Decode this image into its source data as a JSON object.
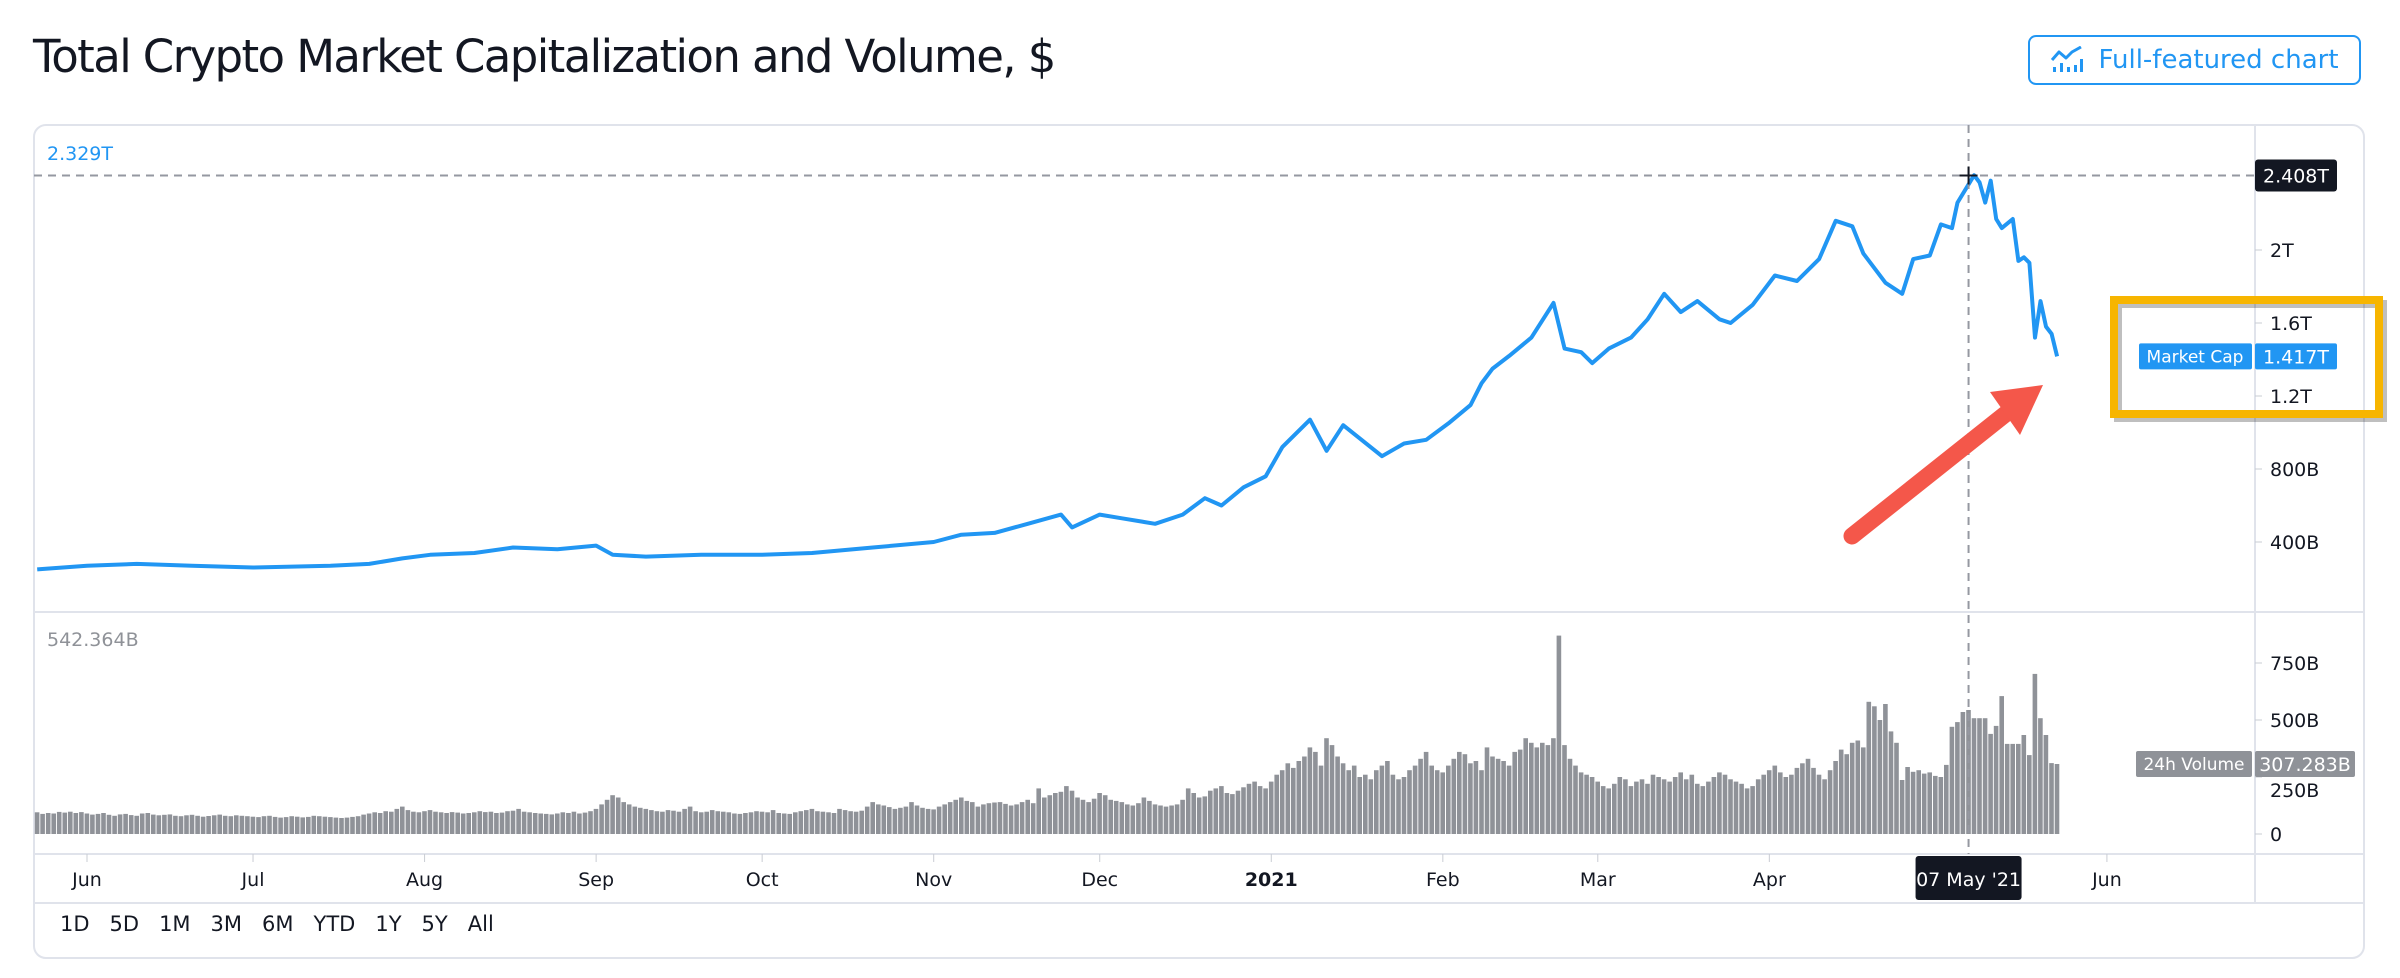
{
  "header": {
    "title": "Total Crypto Market Capitalization and Volume, $",
    "full_chart_button": "Full-featured chart",
    "full_chart_icon": "chart-line-bars-icon"
  },
  "colors": {
    "line": "#2196f3",
    "volume_bar": "#8f9298",
    "crosshair_tag": "#131722",
    "highlight_box": "#f7b500",
    "arrow": "#f4574a"
  },
  "range_buttons": [
    "1D",
    "5D",
    "1M",
    "3M",
    "6M",
    "YTD",
    "1Y",
    "5Y",
    "All"
  ],
  "chart_data": [
    {
      "type": "line",
      "title": "Market Cap",
      "pane_label": "2.329T",
      "current_value_label": "1.417T",
      "series_label": "Market Cap",
      "unit": "T USD",
      "ylim": [
        0,
        2.6
      ],
      "y_ticks": [
        {
          "value": 2.0,
          "label": "2T"
        },
        {
          "value": 1.6,
          "label": "1.6T"
        },
        {
          "value": 1.2,
          "label": "1.2T"
        },
        {
          "value": 0.8,
          "label": "800B"
        },
        {
          "value": 0.4,
          "label": "400B"
        }
      ],
      "crosshair": {
        "date": "2021-05-07",
        "value": 2.408,
        "value_label": "2.408T",
        "date_label": "07 May '21"
      },
      "points": [
        [
          "2020-05-23",
          0.25
        ],
        [
          "2020-06-01",
          0.27
        ],
        [
          "2020-06-10",
          0.28
        ],
        [
          "2020-06-20",
          0.27
        ],
        [
          "2020-07-01",
          0.26
        ],
        [
          "2020-07-15",
          0.27
        ],
        [
          "2020-07-22",
          0.28
        ],
        [
          "2020-07-28",
          0.31
        ],
        [
          "2020-08-02",
          0.33
        ],
        [
          "2020-08-10",
          0.34
        ],
        [
          "2020-08-17",
          0.37
        ],
        [
          "2020-08-25",
          0.36
        ],
        [
          "2020-09-01",
          0.38
        ],
        [
          "2020-09-04",
          0.33
        ],
        [
          "2020-09-10",
          0.32
        ],
        [
          "2020-09-20",
          0.33
        ],
        [
          "2020-10-01",
          0.33
        ],
        [
          "2020-10-10",
          0.34
        ],
        [
          "2020-10-21",
          0.37
        ],
        [
          "2020-11-01",
          0.4
        ],
        [
          "2020-11-06",
          0.44
        ],
        [
          "2020-11-12",
          0.45
        ],
        [
          "2020-11-18",
          0.5
        ],
        [
          "2020-11-24",
          0.55
        ],
        [
          "2020-11-26",
          0.48
        ],
        [
          "2020-12-01",
          0.55
        ],
        [
          "2020-12-05",
          0.53
        ],
        [
          "2020-12-11",
          0.5
        ],
        [
          "2020-12-16",
          0.55
        ],
        [
          "2020-12-20",
          0.64
        ],
        [
          "2020-12-23",
          0.6
        ],
        [
          "2020-12-27",
          0.7
        ],
        [
          "2020-12-31",
          0.76
        ],
        [
          "2021-01-03",
          0.92
        ],
        [
          "2021-01-08",
          1.07
        ],
        [
          "2021-01-11",
          0.9
        ],
        [
          "2021-01-14",
          1.04
        ],
        [
          "2021-01-21",
          0.87
        ],
        [
          "2021-01-25",
          0.94
        ],
        [
          "2021-01-29",
          0.96
        ],
        [
          "2021-02-02",
          1.05
        ],
        [
          "2021-02-06",
          1.15
        ],
        [
          "2021-02-08",
          1.27
        ],
        [
          "2021-02-10",
          1.35
        ],
        [
          "2021-02-13",
          1.42
        ],
        [
          "2021-02-17",
          1.52
        ],
        [
          "2021-02-21",
          1.71
        ],
        [
          "2021-02-23",
          1.46
        ],
        [
          "2021-02-26",
          1.44
        ],
        [
          "2021-02-28",
          1.38
        ],
        [
          "2021-03-03",
          1.46
        ],
        [
          "2021-03-07",
          1.52
        ],
        [
          "2021-03-10",
          1.62
        ],
        [
          "2021-03-13",
          1.76
        ],
        [
          "2021-03-16",
          1.66
        ],
        [
          "2021-03-19",
          1.72
        ],
        [
          "2021-03-23",
          1.62
        ],
        [
          "2021-03-25",
          1.6
        ],
        [
          "2021-03-29",
          1.7
        ],
        [
          "2021-04-02",
          1.86
        ],
        [
          "2021-04-06",
          1.83
        ],
        [
          "2021-04-10",
          1.95
        ],
        [
          "2021-04-13",
          2.16
        ],
        [
          "2021-04-16",
          2.13
        ],
        [
          "2021-04-18",
          1.98
        ],
        [
          "2021-04-22",
          1.82
        ],
        [
          "2021-04-25",
          1.76
        ],
        [
          "2021-04-27",
          1.95
        ],
        [
          "2021-04-30",
          1.97
        ],
        [
          "2021-05-02",
          2.14
        ],
        [
          "2021-05-04",
          2.12
        ],
        [
          "2021-05-05",
          2.26
        ],
        [
          "2021-05-07",
          2.36
        ],
        [
          "2021-05-08",
          2.41
        ],
        [
          "2021-05-09",
          2.37
        ],
        [
          "2021-05-10",
          2.26
        ],
        [
          "2021-05-11",
          2.38
        ],
        [
          "2021-05-12",
          2.17
        ],
        [
          "2021-05-13",
          2.12
        ],
        [
          "2021-05-15",
          2.17
        ],
        [
          "2021-05-16",
          1.94
        ],
        [
          "2021-05-17",
          1.96
        ],
        [
          "2021-05-18",
          1.93
        ],
        [
          "2021-05-19",
          1.52
        ],
        [
          "2021-05-20",
          1.72
        ],
        [
          "2021-05-21",
          1.58
        ],
        [
          "2021-05-22",
          1.54
        ],
        [
          "2021-05-23",
          1.417
        ]
      ]
    },
    {
      "type": "bar",
      "title": "24h Volume",
      "pane_label": "542.364B",
      "current_value_label": "307.283B",
      "series_label": "24h Volume",
      "unit": "B USD",
      "ylim": [
        0,
        900
      ],
      "y_ticks": [
        {
          "value": 750,
          "label": "750B"
        },
        {
          "value": 500,
          "label": "500B"
        },
        {
          "value": 250,
          "label": "250B"
        },
        {
          "value": 0,
          "label": "0"
        }
      ],
      "start_date": "2020-05-23",
      "interval": "1 day",
      "values": [
        95,
        88,
        92,
        90,
        97,
        94,
        98,
        92,
        96,
        90,
        85,
        88,
        92,
        84,
        80,
        86,
        88,
        83,
        80,
        90,
        92,
        85,
        82,
        84,
        86,
        80,
        78,
        82,
        84,
        80,
        76,
        79,
        82,
        85,
        80,
        78,
        82,
        80,
        78,
        76,
        74,
        78,
        80,
        75,
        72,
        74,
        78,
        76,
        73,
        75,
        80,
        78,
        76,
        74,
        72,
        70,
        72,
        75,
        78,
        85,
        90,
        95,
        92,
        100,
        98,
        110,
        120,
        105,
        98,
        95,
        100,
        105,
        98,
        95,
        92,
        96,
        94,
        90,
        92,
        95,
        100,
        96,
        98,
        92,
        94,
        100,
        102,
        110,
        98,
        95,
        92,
        90,
        88,
        86,
        90,
        95,
        92,
        98,
        90,
        94,
        100,
        110,
        130,
        150,
        170,
        160,
        140,
        130,
        120,
        115,
        110,
        105,
        100,
        98,
        105,
        102,
        98,
        110,
        120,
        100,
        95,
        98,
        105,
        100,
        98,
        95,
        90,
        88,
        92,
        95,
        100,
        98,
        95,
        105,
        92,
        90,
        88,
        95,
        100,
        105,
        110,
        100,
        98,
        95,
        92,
        110,
        105,
        100,
        98,
        102,
        120,
        140,
        130,
        125,
        118,
        110,
        115,
        120,
        140,
        125,
        115,
        110,
        108,
        120,
        130,
        140,
        150,
        160,
        145,
        140,
        120,
        130,
        135,
        138,
        140,
        132,
        125,
        130,
        140,
        150,
        135,
        200,
        160,
        170,
        180,
        185,
        210,
        190,
        160,
        150,
        140,
        155,
        180,
        170,
        150,
        145,
        140,
        130,
        125,
        135,
        160,
        145,
        130,
        125,
        120,
        125,
        130,
        150,
        200,
        180,
        160,
        165,
        190,
        200,
        210,
        180,
        175,
        190,
        205,
        220,
        230,
        210,
        200,
        230,
        260,
        280,
        310,
        290,
        320,
        340,
        380,
        360,
        300,
        420,
        390,
        340,
        310,
        280,
        300,
        250,
        260,
        240,
        280,
        300,
        320,
        260,
        240,
        250,
        280,
        300,
        330,
        360,
        300,
        280,
        270,
        300,
        330,
        360,
        350,
        310,
        320,
        280,
        380,
        340,
        330,
        320,
        300,
        360,
        370,
        420,
        400,
        380,
        400,
        390,
        420,
        870,
        390,
        330,
        300,
        270,
        260,
        250,
        230,
        210,
        200,
        220,
        250,
        240,
        210,
        230,
        240,
        220,
        260,
        250,
        240,
        230,
        250,
        270,
        240,
        260,
        220,
        210,
        230,
        250,
        270,
        260,
        240,
        230,
        220,
        200,
        210,
        240,
        260,
        280,
        300,
        270,
        250,
        260,
        290,
        310,
        330,
        290,
        260,
        240,
        280,
        320,
        370,
        350,
        400,
        410,
        380,
        580,
        560,
        500,
        570,
        450,
        400,
        237,
        294,
        273,
        280,
        265,
        270,
        255,
        250,
        303,
        470,
        491,
        535,
        544,
        508,
        508,
        508,
        439,
        474,
        605,
        395,
        395,
        395,
        434,
        346,
        702,
        508,
        434,
        311,
        307
      ]
    }
  ],
  "time_axis": {
    "ticks": [
      {
        "date": "2020-06-01",
        "label": "Jun"
      },
      {
        "date": "2020-07-01",
        "label": "Jul"
      },
      {
        "date": "2020-08-01",
        "label": "Aug"
      },
      {
        "date": "2020-09-01",
        "label": "Sep"
      },
      {
        "date": "2020-10-01",
        "label": "Oct"
      },
      {
        "date": "2020-11-01",
        "label": "Nov"
      },
      {
        "date": "2020-12-01",
        "label": "Dec"
      },
      {
        "date": "2021-01-01",
        "label": "2021",
        "bold": true
      },
      {
        "date": "2021-02-01",
        "label": "Feb"
      },
      {
        "date": "2021-03-01",
        "label": "Mar"
      },
      {
        "date": "2021-04-01",
        "label": "Apr"
      },
      {
        "date": "2021-06-01",
        "label": "Jun"
      }
    ]
  }
}
